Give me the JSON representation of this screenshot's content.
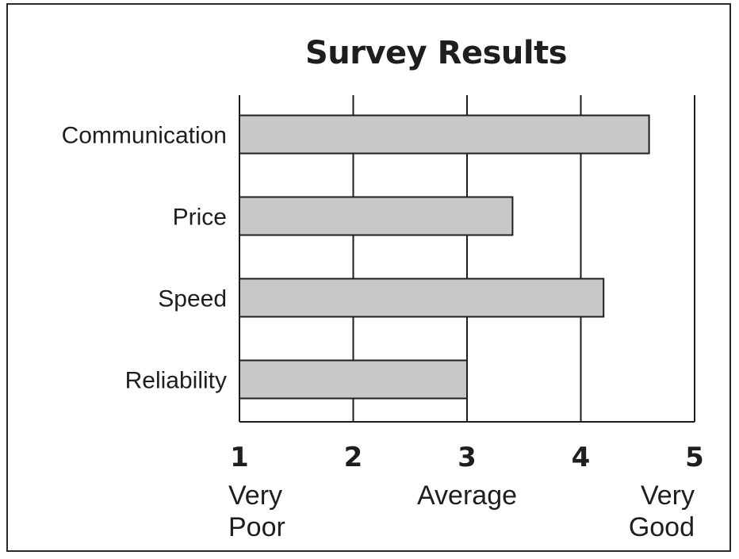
{
  "chart_data": {
    "type": "bar",
    "orientation": "horizontal",
    "title": "Survey Results",
    "categories": [
      "Communication",
      "Price",
      "Speed",
      "Reliability"
    ],
    "values": [
      4.6,
      3.4,
      4.2,
      3.0
    ],
    "xlim": [
      1,
      5
    ],
    "xticks": [
      1,
      2,
      3,
      4,
      5
    ],
    "tick_labels": [
      "1",
      "2",
      "3",
      "4",
      "5"
    ],
    "scale_labels": [
      {
        "at": 1,
        "lines": [
          "Very",
          "Poor"
        ],
        "align": "start"
      },
      {
        "at": 3,
        "lines": [
          "Average"
        ],
        "align": "middle"
      },
      {
        "at": 5,
        "lines": [
          "Very",
          "Good"
        ],
        "align": "end"
      }
    ],
    "grid": true,
    "bar_color": "#c8c8c8",
    "line_color": "#1e1e1e"
  }
}
